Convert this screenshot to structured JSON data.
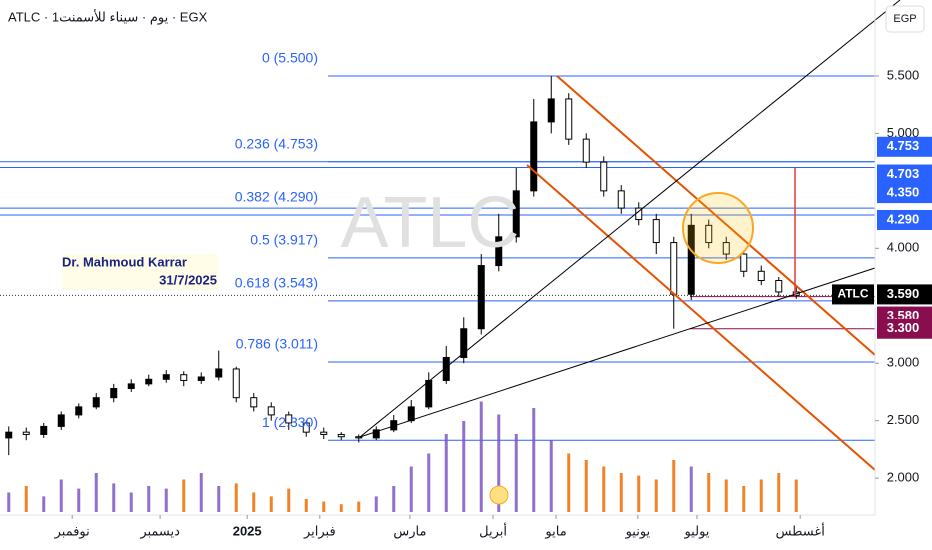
{
  "chart_data": {
    "type": "candlestick",
    "title": "ATLC · 1يوم · سيناء للأسمنت · EGX",
    "watermark": "ATLC",
    "currency": "EGP",
    "author": "Dr. Mahmoud Karrar",
    "date": "31/7/2025",
    "xlim": [
      0,
      200
    ],
    "xticks": [
      {
        "value": 16.5,
        "label": "نوفمبر"
      },
      {
        "value": 36.6,
        "label": "ديسمبر"
      },
      {
        "value": 56.5,
        "label": "2025"
      },
      {
        "value": 73.1,
        "label": "فبراير"
      },
      {
        "value": 93.7,
        "label": "مارس"
      },
      {
        "value": 112.7,
        "label": "أبريل"
      },
      {
        "value": 127.1,
        "label": "مايو"
      },
      {
        "value": 145.8,
        "label": "يونيو"
      },
      {
        "value": 159.3,
        "label": "يوليو"
      },
      {
        "value": 182.9,
        "label": "أغسطس"
      }
    ],
    "ylim": [
      1.679,
      6.161
    ],
    "yticks": [
      {
        "value": 2,
        "label": "2.000"
      },
      {
        "value": 2.5,
        "label": "2.500"
      },
      {
        "value": 3,
        "label": "3.000"
      },
      {
        "value": 4,
        "label": "4.000"
      },
      {
        "value": 5,
        "label": "5.000"
      },
      {
        "value": 5.5,
        "label": "5.500"
      }
    ],
    "up_color": "#000000",
    "down_color": "#ffffff",
    "x": [
      2,
      6,
      10,
      14,
      18,
      22,
      26,
      30,
      34,
      38,
      42,
      46,
      50,
      54,
      58,
      62,
      66,
      70,
      74,
      78,
      82,
      86,
      90,
      94,
      98,
      102,
      106,
      110,
      114,
      118,
      122,
      126,
      130,
      134,
      138,
      142,
      146,
      150,
      154,
      158,
      162,
      166,
      170,
      174,
      178,
      182
    ],
    "open": [
      2.35,
      2.4,
      2.38,
      2.45,
      2.55,
      2.62,
      2.7,
      2.78,
      2.82,
      2.86,
      2.9,
      2.85,
      2.88,
      2.95,
      2.7,
      2.62,
      2.55,
      2.48,
      2.4,
      2.38,
      2.36,
      2.35,
      2.42,
      2.5,
      2.62,
      2.85,
      3.05,
      3.3,
      3.85,
      4.1,
      4.5,
      5.1,
      5.3,
      4.95,
      4.75,
      4.5,
      4.35,
      4.25,
      4.05,
      3.6,
      4.2,
      4.05,
      3.95,
      3.8,
      3.72,
      3.62
    ],
    "high": [
      2.45,
      2.44,
      2.48,
      2.58,
      2.65,
      2.74,
      2.82,
      2.86,
      2.9,
      2.94,
      2.93,
      2.92,
      3.11,
      2.97,
      2.74,
      2.66,
      2.58,
      2.5,
      2.44,
      2.4,
      2.38,
      2.45,
      2.55,
      2.68,
      2.92,
      3.15,
      3.4,
      3.95,
      4.3,
      4.7,
      5.3,
      5.5,
      5.35,
      5.0,
      4.8,
      4.55,
      4.4,
      4.3,
      4.1,
      4.3,
      4.25,
      4.1,
      3.98,
      3.85,
      3.75,
      3.66
    ],
    "low": [
      2.2,
      2.33,
      2.35,
      2.42,
      2.52,
      2.6,
      2.66,
      2.75,
      2.8,
      2.83,
      2.8,
      2.82,
      2.85,
      2.66,
      2.58,
      2.5,
      2.42,
      2.36,
      2.34,
      2.33,
      2.31,
      2.33,
      2.4,
      2.48,
      2.6,
      2.82,
      3.0,
      3.25,
      3.8,
      4.05,
      4.45,
      5.0,
      4.9,
      4.7,
      4.45,
      4.3,
      4.2,
      3.95,
      3.3,
      3.55,
      4.0,
      3.9,
      3.75,
      3.68,
      3.58,
      3.56
    ],
    "close": [
      2.4,
      2.38,
      2.45,
      2.55,
      2.62,
      2.7,
      2.78,
      2.82,
      2.86,
      2.9,
      2.85,
      2.88,
      2.95,
      2.7,
      2.62,
      2.55,
      2.48,
      2.4,
      2.38,
      2.36,
      2.35,
      2.42,
      2.5,
      2.62,
      2.85,
      3.05,
      3.3,
      3.85,
      4.1,
      4.5,
      5.1,
      5.3,
      4.95,
      4.75,
      4.5,
      4.35,
      4.25,
      4.05,
      3.6,
      4.2,
      4.05,
      3.95,
      3.8,
      3.72,
      3.62,
      3.59
    ],
    "volume": [
      15,
      20,
      12,
      25,
      18,
      30,
      22,
      15,
      20,
      18,
      25,
      30,
      20,
      22,
      15,
      12,
      18,
      10,
      8,
      6,
      8,
      12,
      20,
      35,
      45,
      60,
      70,
      85,
      75,
      60,
      80,
      55,
      45,
      40,
      35,
      30,
      28,
      25,
      40,
      35,
      30,
      25,
      20,
      25,
      30,
      25
    ],
    "volume_up_color": "#7e57c2",
    "volume_down_color": "#ef6c00",
    "fib_color": "#2962ff",
    "fib_levels": [
      {
        "value": 5.5,
        "label": "0 (5.500)"
      },
      {
        "value": 4.753,
        "label": "0.236 (4.753)"
      },
      {
        "value": 4.29,
        "label": "0.382 (4.290)"
      },
      {
        "value": 3.917,
        "label": "0.5 (3.917)"
      },
      {
        "value": 3.543,
        "label": "0.618 (3.543)"
      },
      {
        "value": 3.011,
        "label": "0.786 (3.011)"
      },
      {
        "value": 2.33,
        "label": "1 (2.330)"
      }
    ],
    "price_labels": [
      {
        "value": 4.753,
        "label": "4.753",
        "color": "#2962ff"
      },
      {
        "value": 4.703,
        "label": "4.703",
        "color": "#2962ff"
      },
      {
        "value": 4.35,
        "label": "4.350",
        "color": "#2962ff"
      },
      {
        "value": 4.29,
        "label": "4.290",
        "color": "#2962ff"
      },
      {
        "value": 3.59,
        "label": "3.590",
        "color": "#000000"
      },
      {
        "value": 3.58,
        "label": "3.580",
        "color": "#880e4f"
      },
      {
        "value": 3.3,
        "label": "3.300",
        "color": "#880e4f"
      }
    ],
    "last_symbol": "ATLC"
  }
}
